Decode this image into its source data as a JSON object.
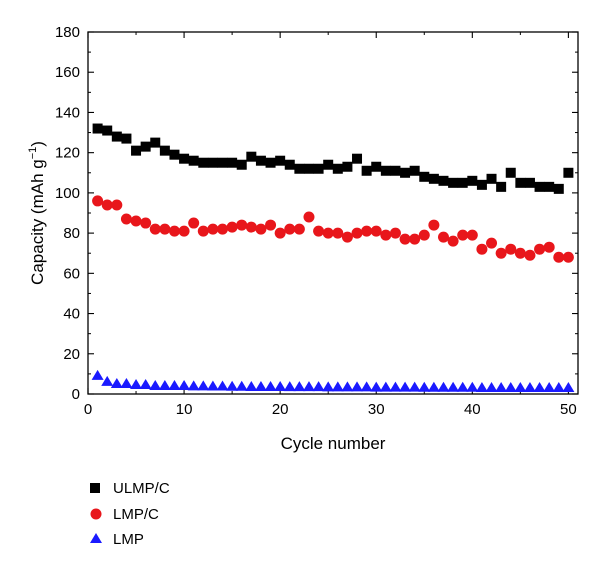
{
  "chart_data": {
    "type": "scatter",
    "xlabel": "Cycle number",
    "ylabel_main": "Capacity (mAh g",
    "ylabel_sup": "−1",
    "ylabel_close": ")",
    "xlim": [
      0,
      51
    ],
    "ylim": [
      0,
      180
    ],
    "xticks": [
      0,
      10,
      20,
      30,
      40,
      50
    ],
    "xtick_labels": [
      "0",
      "10",
      "20",
      "30",
      "40",
      "50"
    ],
    "yticks": [
      0,
      20,
      40,
      60,
      80,
      100,
      120,
      140,
      160,
      180
    ],
    "ytick_labels": [
      "0",
      "20",
      "40",
      "60",
      "80",
      "100",
      "120",
      "140",
      "160",
      "180"
    ],
    "grid": false,
    "legend_placement": "below",
    "x": [
      1,
      2,
      3,
      4,
      5,
      6,
      7,
      8,
      9,
      10,
      11,
      12,
      13,
      14,
      15,
      16,
      17,
      18,
      19,
      20,
      21,
      22,
      23,
      24,
      25,
      26,
      27,
      28,
      29,
      30,
      31,
      32,
      33,
      34,
      35,
      36,
      37,
      38,
      39,
      40,
      41,
      42,
      43,
      44,
      45,
      46,
      47,
      48,
      49,
      50
    ],
    "series": [
      {
        "name": "ULMP/C",
        "marker": "square",
        "color": "#000000",
        "values": [
          132,
          131,
          128,
          127,
          121,
          123,
          125,
          121,
          119,
          117,
          116,
          115,
          115,
          115,
          115,
          114,
          118,
          116,
          115,
          116,
          114,
          112,
          112,
          112,
          114,
          112,
          113,
          117,
          111,
          113,
          111,
          111,
          110,
          111,
          108,
          107,
          106,
          105,
          105,
          106,
          104,
          107,
          103,
          110,
          105,
          105,
          103,
          103,
          102,
          110
        ]
      },
      {
        "name": "LMP/C",
        "marker": "circle",
        "color": "#e8161b",
        "values": [
          96,
          94,
          94,
          87,
          86,
          85,
          82,
          82,
          81,
          81,
          85,
          81,
          82,
          82,
          83,
          84,
          83,
          82,
          84,
          80,
          82,
          82,
          88,
          81,
          80,
          80,
          78,
          80,
          81,
          81,
          79,
          80,
          77,
          77,
          79,
          84,
          78,
          76,
          79,
          79,
          72,
          75,
          70,
          72,
          70,
          69,
          72,
          73,
          68,
          68
        ]
      },
      {
        "name": "LMP",
        "marker": "triangle",
        "color": "#1a1aff",
        "values": [
          9,
          6,
          5,
          5,
          4.5,
          4.5,
          4,
          4,
          4,
          4,
          3.8,
          3.8,
          3.7,
          3.7,
          3.6,
          3.6,
          3.5,
          3.5,
          3.5,
          3.5,
          3.4,
          3.4,
          3.4,
          3.4,
          3.3,
          3.3,
          3.3,
          3.3,
          3.3,
          3.2,
          3.2,
          3.2,
          3.2,
          3.2,
          3.1,
          3.1,
          3.1,
          3.1,
          3.1,
          3.1,
          3,
          3,
          3,
          3,
          3,
          3,
          3,
          3,
          3,
          3
        ]
      }
    ]
  }
}
